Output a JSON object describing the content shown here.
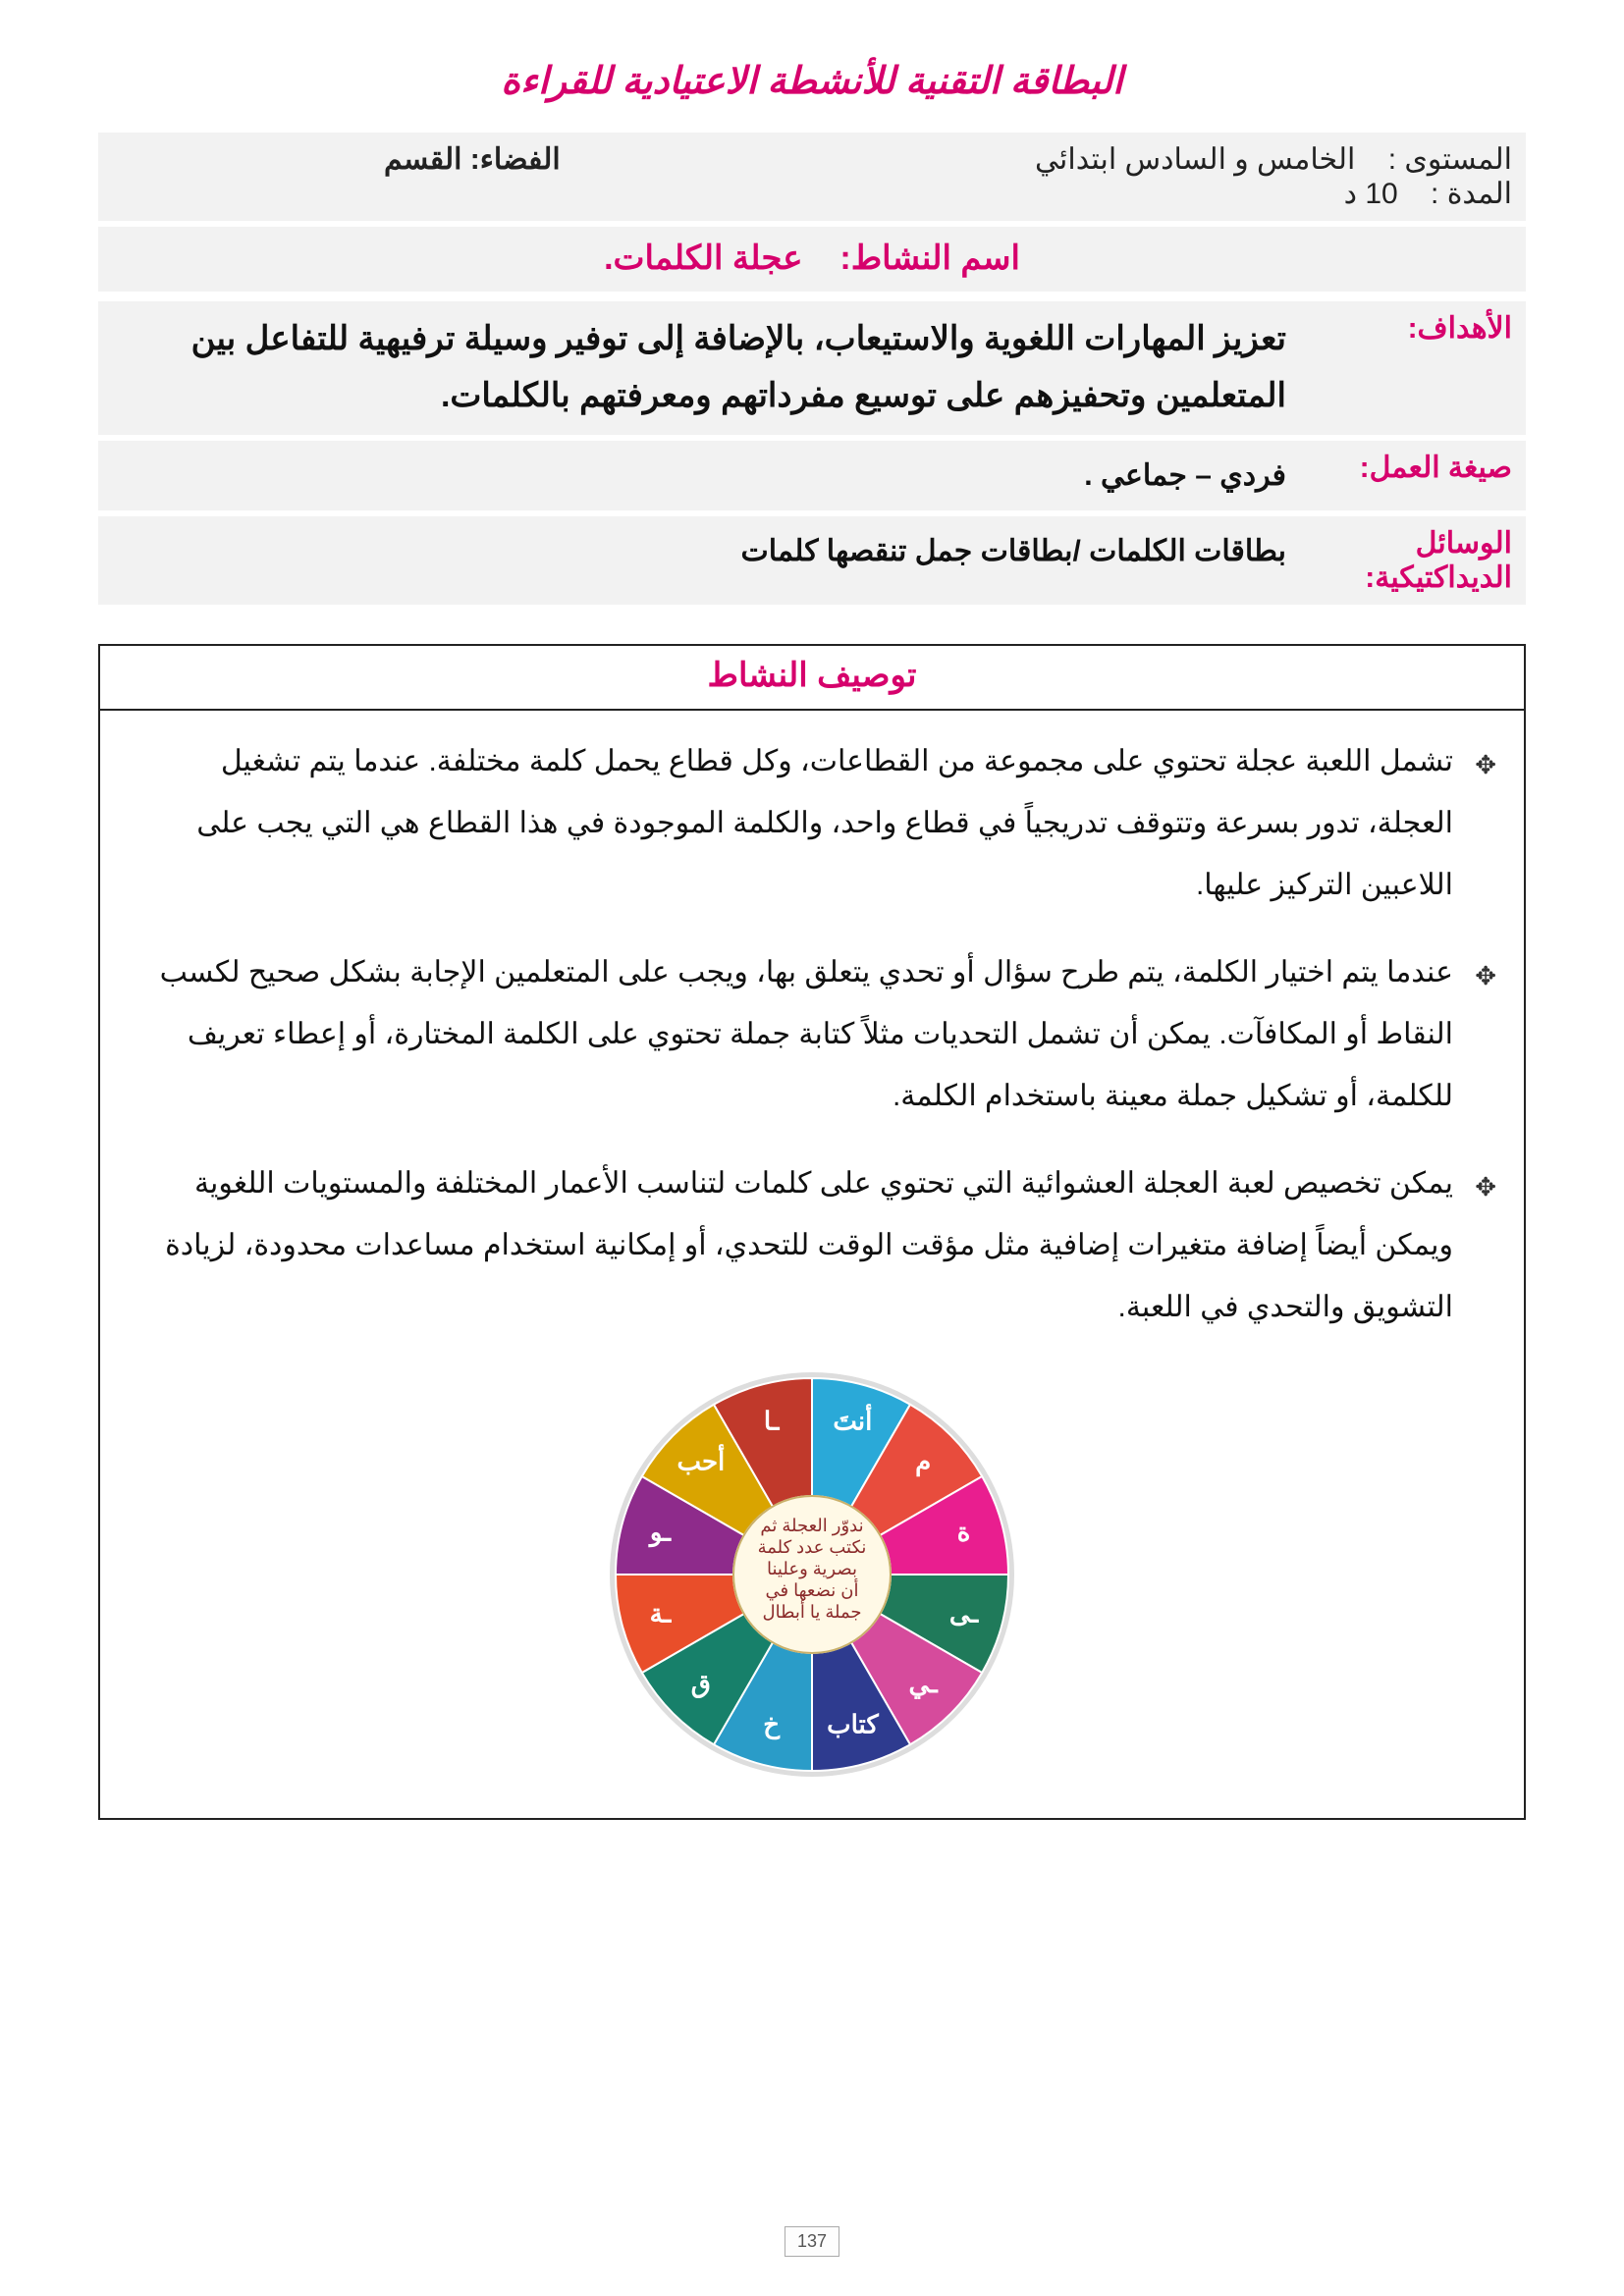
{
  "title": "البطاقة التقنية للأنشطة الاعتيادية للقراءة",
  "header": {
    "level_label": "المستوى :",
    "level_value": "الخامس و السادس ابتدائي",
    "duration_label": "المدة :",
    "duration_value": "10 د",
    "space_label": "الفضاء: القسم"
  },
  "activity_name_label": "اسم النشاط:",
  "activity_name_value": "عجلة الكلمات.",
  "rows": {
    "goals_label": "الأهداف:",
    "goals_value": "تعزيز المهارات اللغوية والاستيعاب، بالإضافة إلى توفير وسيلة ترفيهية للتفاعل بين المتعلمين وتحفيزهم على توسيع مفرداتهم ومعرفتهم بالكلمات.",
    "mode_label": "صيغة العمل:",
    "mode_value": "فردي – جماعي .",
    "tools_label": "الوسائل الديداكتيكية:",
    "tools_value": "بطاقات الكلمات /بطاقات جمل تنقصها كلمات"
  },
  "description": {
    "heading": "توصيف النشاط",
    "items": [
      "تشمل اللعبة عجلة تحتوي على مجموعة من القطاعات، وكل قطاع يحمل كلمة مختلفة. عندما يتم تشغيل العجلة، تدور بسرعة وتتوقف تدريجياً في قطاع واحد، والكلمة الموجودة في هذا القطاع هي التي يجب على اللاعبين التركيز عليها.",
      "عندما يتم اختيار الكلمة، يتم طرح سؤال أو تحدي يتعلق بها، ويجب على المتعلمين الإجابة بشكل صحيح لكسب النقاط أو المكافآت. يمكن أن تشمل التحديات مثلاً كتابة جملة تحتوي على الكلمة المختارة، أو إعطاء تعريف للكلمة، أو تشكيل جملة معينة باستخدام الكلمة.",
      "يمكن تخصيص لعبة العجلة العشوائية التي تحتوي على كلمات لتناسب الأعمار المختلفة والمستويات اللغوية ويمكن أيضاً إضافة متغيرات إضافية مثل مؤقت الوقت للتحدي، أو إمكانية استخدام مساعدات محدودة، لزيادة التشويق والتحدي في اللعبة."
    ]
  },
  "wheel": {
    "colors": [
      "#2aa9d8",
      "#e84c3d",
      "#e91e8f",
      "#1f7a5a",
      "#d64b9c",
      "#2e3b8f",
      "#2a9cc8",
      "#17806a",
      "#e94e2a",
      "#8e2b8b",
      "#d9a400",
      "#c0392b"
    ],
    "labels": [
      "أنتَ",
      "م",
      "ة",
      "ـى",
      "ـي",
      "كتاب",
      "خ",
      "ق",
      "ـة",
      "ـو",
      "أحب",
      "ـا"
    ],
    "center_lines": [
      "ندوّر العجلة ثم",
      "نكتب عدد كلمة",
      "بصرية وعلينا",
      "أن نضعها في",
      "جملة يا أبطال"
    ],
    "inner_bg": "#fff9e6",
    "rim_color": "#dddddd"
  },
  "page_number": "137"
}
